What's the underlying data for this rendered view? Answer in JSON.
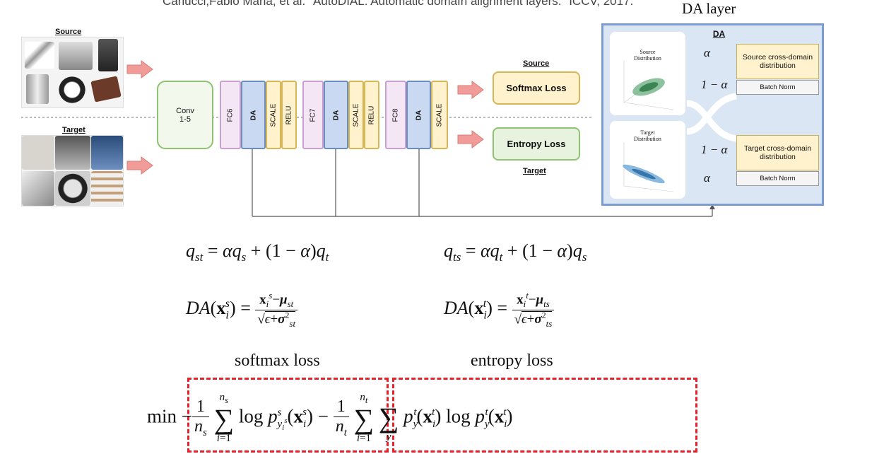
{
  "header": {
    "citation": "Carlucci,Fabio Maria, et al. \"AutoDIAL: Automatic domaIn alignment layers.\" ICCV, 2017.",
    "da_layer_title": "DA layer"
  },
  "network": {
    "source_label": "Source",
    "target_label": "Target",
    "conv": "Conv\n1-5",
    "blocks": [
      {
        "label": "FC6"
      },
      {
        "label": "DA"
      },
      {
        "label": "SCALE"
      },
      {
        "label": "RELU"
      },
      {
        "label": "FC7"
      },
      {
        "label": "DA"
      },
      {
        "label": "SCALE"
      },
      {
        "label": "RELU"
      },
      {
        "label": "FC8"
      },
      {
        "label": "DA"
      },
      {
        "label": "SCALE"
      }
    ],
    "source_loss_caption": "Source",
    "softmax_loss": "Softmax Loss",
    "entropy_loss": "Entropy Loss",
    "target_loss_caption": "Target"
  },
  "da_panel": {
    "title": "DA",
    "source_distribution": "Source\nDistribution",
    "target_distribution": "Target\nDistribution",
    "alpha": "α",
    "one_minus_alpha": "1 − α",
    "source_cross": "Source cross-domain distribution",
    "target_cross": "Target cross-domain distribution",
    "batch_norm": "Batch Norm"
  },
  "equations": {
    "q_st": "q_st = αq_s + (1 − α)q_t",
    "q_ts": "q_ts = αq_t + (1 − α)q_s",
    "da_s": "DA(x_i^s) = (x_i^s − μ_st) / sqrt(ε + σ_st^2)",
    "da_t": "DA(x_i^t) = (x_i^t − μ_ts) / sqrt(ε + σ_ts^2)",
    "softmax_label": "softmax loss",
    "entropy_label": "entropy loss",
    "objective": "min − (1/n_s) Σ_{i=1}^{n_s} log p^s_{y_i^s}(x_i^s) − (1/n_t) Σ_{i=1}^{n_t} Σ_y p_y^t(x_i^t) log p_y^t(x_i^t)"
  },
  "colors": {
    "conv_fill": "#f2f9ec",
    "conv_border": "#8fc271",
    "fc_fill": "#f5e6f5",
    "fc_border": "#c9a0cf",
    "da_fill": "#c9d9f2",
    "da_border": "#6c8ebf",
    "scale_fill": "#fff2cc",
    "scale_border": "#d6b656",
    "arrow": "#f19c99",
    "dash": "#e8202a"
  }
}
